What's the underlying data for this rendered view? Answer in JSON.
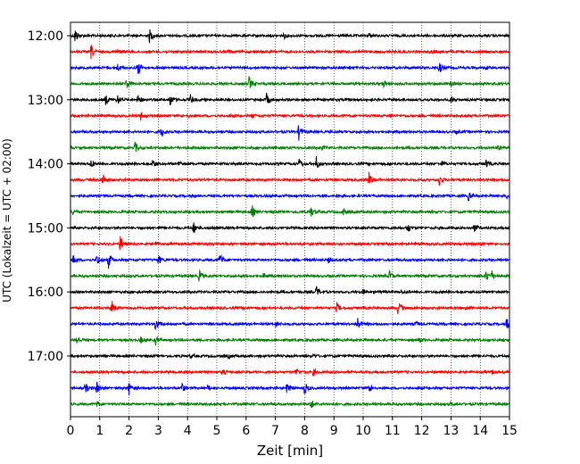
{
  "chart_data": {
    "type": "line",
    "title": "",
    "xlabel": "Zeit  [min]",
    "ylabel": "UTC (Lokalzeit = UTC + 02:00)",
    "xlim": [
      0,
      15
    ],
    "x_ticks": [
      "0",
      "1",
      "2",
      "3",
      "4",
      "5",
      "6",
      "7",
      "8",
      "9",
      "10",
      "11",
      "12",
      "13",
      "14",
      "15"
    ],
    "y_ticks": [
      {
        "row": 0,
        "label": "12:00"
      },
      {
        "row": 4,
        "label": "13:00"
      },
      {
        "row": 8,
        "label": "14:00"
      },
      {
        "row": 12,
        "label": "15:00"
      },
      {
        "row": 16,
        "label": "16:00"
      },
      {
        "row": 20,
        "label": "17:00"
      }
    ],
    "grid": "vertical dotted at each minute",
    "trace_colors": [
      "#000000",
      "#ff0000",
      "#0000ff",
      "#008000"
    ],
    "traces": [
      {
        "start": "12:00",
        "color": "#000000",
        "events": [
          [
            0.15,
            1.0
          ],
          [
            2.7,
            0.8
          ],
          [
            7.3,
            0.3
          ],
          [
            10.2,
            0.3
          ]
        ]
      },
      {
        "start": "12:15",
        "color": "#ff0000",
        "events": [
          [
            0.7,
            0.9
          ],
          [
            1.6,
            0.3
          ],
          [
            5.4,
            0.2
          ],
          [
            12.3,
            0.2
          ]
        ]
      },
      {
        "start": "12:30",
        "color": "#0000ff",
        "events": [
          [
            1.6,
            0.5
          ],
          [
            2.3,
            1.0
          ],
          [
            12.6,
            0.7
          ],
          [
            14.2,
            0.2
          ]
        ]
      },
      {
        "start": "12:45",
        "color": "#008000",
        "events": [
          [
            1.9,
            0.7
          ],
          [
            6.1,
            0.9
          ],
          [
            10.7,
            0.4
          ],
          [
            13.0,
            0.3
          ]
        ]
      },
      {
        "start": "13:00",
        "color": "#000000",
        "events": [
          [
            1.2,
            0.6
          ],
          [
            1.6,
            0.6
          ],
          [
            2.3,
            0.7
          ],
          [
            3.4,
            0.8
          ],
          [
            4.1,
            0.6
          ],
          [
            6.7,
            0.8
          ],
          [
            13.0,
            0.4
          ]
        ]
      },
      {
        "start": "13:15",
        "color": "#ff0000",
        "events": [
          [
            2.4,
            0.5
          ],
          [
            4.0,
            0.2
          ],
          [
            6.2,
            0.2
          ],
          [
            10.9,
            0.2
          ]
        ]
      },
      {
        "start": "13:30",
        "color": "#0000ff",
        "events": [
          [
            3.1,
            0.7
          ],
          [
            7.8,
            1.0
          ],
          [
            13.2,
            0.2
          ]
        ]
      },
      {
        "start": "13:45",
        "color": "#008000",
        "events": [
          [
            2.2,
            0.7
          ],
          [
            8.6,
            0.2
          ],
          [
            14.6,
            0.3
          ]
        ]
      },
      {
        "start": "14:00",
        "color": "#000000",
        "events": [
          [
            0.7,
            0.5
          ],
          [
            2.8,
            0.6
          ],
          [
            3.7,
            0.4
          ],
          [
            7.8,
            0.7
          ],
          [
            8.4,
            0.8
          ],
          [
            12.7,
            0.3
          ],
          [
            14.2,
            0.5
          ]
        ]
      },
      {
        "start": "14:15",
        "color": "#ff0000",
        "events": [
          [
            1.1,
            0.8
          ],
          [
            10.2,
            1.0
          ],
          [
            12.6,
            0.7
          ]
        ]
      },
      {
        "start": "14:30",
        "color": "#0000ff",
        "events": [
          [
            9.1,
            0.2
          ],
          [
            13.6,
            0.6
          ],
          [
            14.9,
            0.4
          ]
        ]
      },
      {
        "start": "14:45",
        "color": "#008000",
        "events": [
          [
            0.1,
            0.4
          ],
          [
            6.2,
            0.8
          ],
          [
            8.2,
            0.7
          ],
          [
            9.3,
            0.5
          ]
        ]
      },
      {
        "start": "15:00",
        "color": "#000000",
        "events": [
          [
            4.2,
            0.7
          ],
          [
            4.8,
            0.2
          ],
          [
            11.5,
            0.8
          ],
          [
            13.8,
            0.5
          ]
        ]
      },
      {
        "start": "15:15",
        "color": "#ff0000",
        "events": [
          [
            1.7,
            1.0
          ],
          [
            2.9,
            0.3
          ],
          [
            14.0,
            0.2
          ]
        ]
      },
      {
        "start": "15:30",
        "color": "#0000ff",
        "events": [
          [
            0.1,
            0.6
          ],
          [
            0.9,
            0.8
          ],
          [
            1.3,
            1.0
          ],
          [
            3.0,
            0.6
          ],
          [
            5.1,
            0.8
          ],
          [
            8.8,
            0.3
          ]
        ]
      },
      {
        "start": "15:45",
        "color": "#008000",
        "events": [
          [
            4.4,
            0.8
          ],
          [
            6.6,
            0.3
          ],
          [
            10.9,
            0.6
          ],
          [
            14.2,
            0.8
          ],
          [
            14.4,
            0.5
          ]
        ]
      },
      {
        "start": "16:00",
        "color": "#000000",
        "events": [
          [
            8.4,
            0.7
          ],
          [
            10.0,
            0.3
          ],
          [
            11.3,
            0.2
          ]
        ]
      },
      {
        "start": "16:15",
        "color": "#ff0000",
        "events": [
          [
            1.4,
            1.0
          ],
          [
            9.1,
            0.6
          ],
          [
            11.2,
            1.0
          ],
          [
            13.5,
            0.2
          ]
        ]
      },
      {
        "start": "16:30",
        "color": "#0000ff",
        "events": [
          [
            2.9,
            0.8
          ],
          [
            7.0,
            0.4
          ],
          [
            9.8,
            0.9
          ],
          [
            11.8,
            0.3
          ],
          [
            14.9,
            0.8
          ]
        ]
      },
      {
        "start": "16:45",
        "color": "#008000",
        "events": [
          [
            0.2,
            0.6
          ],
          [
            2.4,
            0.4
          ],
          [
            2.9,
            0.6
          ],
          [
            11.9,
            0.3
          ]
        ]
      },
      {
        "start": "17:00",
        "color": "#000000",
        "events": [
          [
            4.1,
            0.2
          ],
          [
            5.4,
            0.2
          ],
          [
            8.3,
            0.2
          ]
        ]
      },
      {
        "start": "17:15",
        "color": "#ff0000",
        "events": [
          [
            5.2,
            0.4
          ],
          [
            7.7,
            0.5
          ],
          [
            8.3,
            0.4
          ],
          [
            14.4,
            0.2
          ]
        ]
      },
      {
        "start": "17:30",
        "color": "#0000ff",
        "events": [
          [
            0.5,
            0.7
          ],
          [
            0.9,
            0.8
          ],
          [
            2.0,
            0.8
          ],
          [
            3.8,
            0.6
          ],
          [
            4.7,
            0.4
          ],
          [
            7.4,
            0.8
          ],
          [
            8.0,
            0.8
          ],
          [
            10.2,
            0.6
          ]
        ]
      },
      {
        "start": "17:45",
        "color": "#008000",
        "events": [
          [
            0.9,
            0.4
          ],
          [
            8.2,
            0.7
          ],
          [
            13.0,
            0.2
          ]
        ]
      }
    ]
  }
}
